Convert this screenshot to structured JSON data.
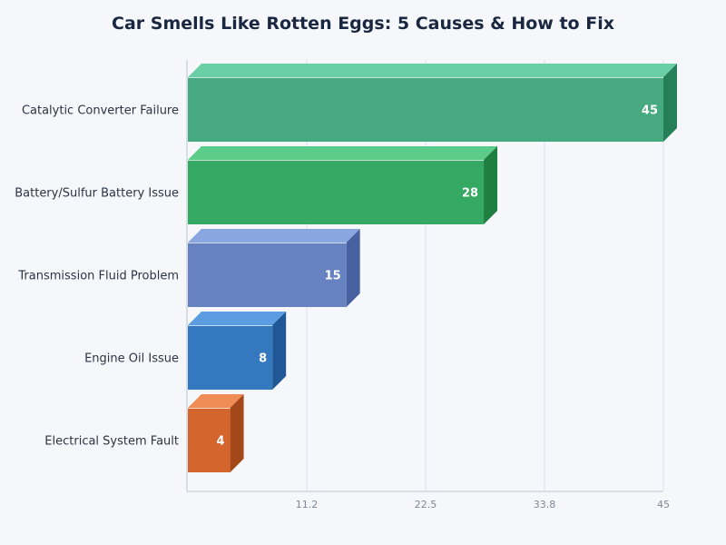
{
  "chart_data": {
    "type": "bar",
    "orientation": "horizontal",
    "style": "3d",
    "title": "Car Smells Like Rotten Eggs: 5 Causes & How to Fix",
    "xlabel": "",
    "ylabel": "",
    "categories": [
      "Catalytic Converter Failure",
      "Battery/Sulfur Battery Issue",
      "Transmission Fluid Problem",
      "Engine Oil Issue",
      "Electrical System Fault"
    ],
    "values": [
      45,
      28,
      15,
      8,
      4
    ],
    "data_labels": [
      "45",
      "28",
      "15",
      "8",
      "4"
    ],
    "xlim": [
      0,
      45
    ],
    "xticks": [
      "11.2",
      "22.5",
      "33.8",
      "45"
    ],
    "xtick_values": [
      11.25,
      22.5,
      33.75,
      45
    ],
    "grid": "vertical",
    "colors": [
      {
        "front": "#47a980",
        "top": "#6bcfa5",
        "side": "#268057"
      },
      {
        "front": "#35a864",
        "top": "#5ccc8a",
        "side": "#1f7f41"
      },
      {
        "front": "#6682c0",
        "top": "#89a6e0",
        "side": "#4761a0"
      },
      {
        "front": "#3478bf",
        "top": "#5b9de0",
        "side": "#1f5797"
      },
      {
        "front": "#d4652d",
        "top": "#f08c55",
        "side": "#a4481a"
      }
    ]
  }
}
